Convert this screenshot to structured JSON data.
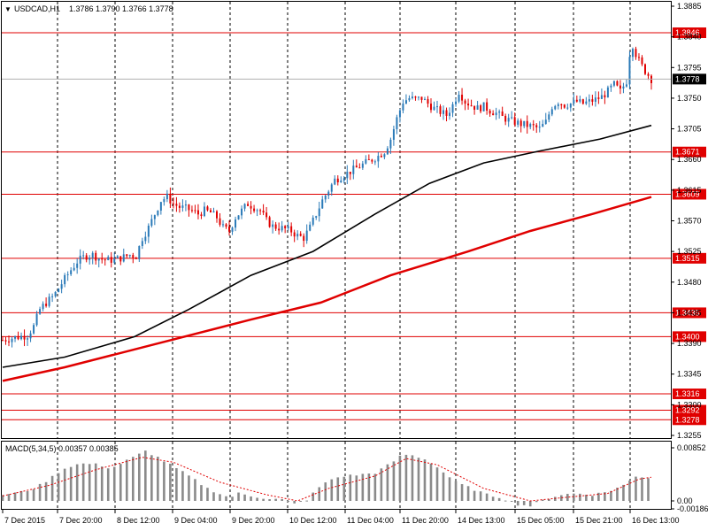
{
  "header": {
    "symbol": "USDCAD,H1",
    "ohlc": "1.3786 1.3790 1.3766 1.3778"
  },
  "macd_label": "MACD(5,34,5) 0.00357 0.00385",
  "colors": {
    "background": "#ffffff",
    "bull": "#2a7ab8",
    "bear": "#e00000",
    "ma_fast": "#000000",
    "ma_slow": "#e00000",
    "level_line": "#e00000",
    "grid": "#000000",
    "histogram": "#8a8a8a",
    "signal": "#e00000"
  },
  "chart_data": [
    {
      "type": "candlestick",
      "symbol": "USDCAD",
      "timeframe": "H1",
      "ylim": [
        1.3255,
        1.3885
      ],
      "y_ticks": [
        "1.3885",
        "1.3840",
        "1.3795",
        "1.3750",
        "1.3705",
        "1.3660",
        "1.3615",
        "1.3570",
        "1.3525",
        "1.3480",
        "1.3435",
        "1.3390",
        "1.3345",
        "1.3300",
        "1.3255"
      ],
      "x_ticks": [
        "7 Dec 2015",
        "7 Dec 20:00",
        "8 Dec 12:00",
        "9 Dec 04:00",
        "9 Dec 20:00",
        "10 Dec 12:00",
        "11 Dec 04:00",
        "11 Dec 20:00",
        "14 Dec 13:00",
        "15 Dec 05:00",
        "15 Dec 21:00",
        "16 Dec 13:00"
      ],
      "grid": "vertical dashed",
      "current_price": "1.3778",
      "levels": [
        "1.3846",
        "1.3671",
        "1.3609",
        "1.3515",
        "1.3435",
        "1.3400",
        "1.3316",
        "1.3292",
        "1.3278"
      ],
      "close_path": [
        [
          0,
          1.3395
        ],
        [
          6,
          1.3398
        ],
        [
          11,
          1.34
        ],
        [
          16,
          1.3402
        ],
        [
          20,
          1.3415
        ],
        [
          24,
          1.344
        ],
        [
          28,
          1.345
        ],
        [
          33,
          1.346
        ],
        [
          38,
          1.3478
        ],
        [
          43,
          1.3495
        ],
        [
          48,
          1.351
        ],
        [
          53,
          1.3518
        ],
        [
          58,
          1.352
        ],
        [
          62,
          1.3515
        ],
        [
          67,
          1.3512
        ],
        [
          72,
          1.3513
        ],
        [
          77,
          1.3516
        ],
        [
          82,
          1.352
        ],
        [
          86,
          1.3518
        ],
        [
          90,
          1.3545
        ],
        [
          94,
          1.356
        ],
        [
          98,
          1.358
        ],
        [
          102,
          1.36
        ],
        [
          106,
          1.3605
        ],
        [
          110,
          1.3595
        ],
        [
          114,
          1.359
        ],
        [
          118,
          1.3588
        ],
        [
          122,
          1.3585
        ],
        [
          126,
          1.358
        ],
        [
          130,
          1.3585
        ],
        [
          134,
          1.3582
        ],
        [
          138,
          1.3575
        ],
        [
          142,
          1.356
        ],
        [
          146,
          1.3555
        ],
        [
          150,
          1.3575
        ],
        [
          154,
          1.3585
        ],
        [
          158,
          1.3595
        ],
        [
          162,
          1.359
        ],
        [
          166,
          1.3585
        ],
        [
          170,
          1.357
        ],
        [
          174,
          1.3562
        ],
        [
          178,
          1.356
        ],
        [
          182,
          1.3558
        ],
        [
          186,
          1.3555
        ],
        [
          190,
          1.3548
        ],
        [
          194,
          1.3545
        ],
        [
          198,
          1.356
        ],
        [
          202,
          1.358
        ],
        [
          206,
          1.36
        ],
        [
          210,
          1.3615
        ],
        [
          214,
          1.363
        ],
        [
          218,
          1.3635
        ],
        [
          222,
          1.364
        ],
        [
          226,
          1.3645
        ],
        [
          230,
          1.365
        ],
        [
          234,
          1.3655
        ],
        [
          238,
          1.366
        ],
        [
          242,
          1.3665
        ],
        [
          246,
          1.3672
        ],
        [
          250,
          1.369
        ],
        [
          254,
          1.372
        ],
        [
          258,
          1.3745
        ],
        [
          262,
          1.375
        ],
        [
          266,
          1.3748
        ],
        [
          270,
          1.375
        ],
        [
          274,
          1.3742
        ],
        [
          278,
          1.3735
        ],
        [
          282,
          1.373
        ],
        [
          286,
          1.3725
        ],
        [
          290,
          1.374
        ],
        [
          294,
          1.376
        ],
        [
          298,
          1.3745
        ],
        [
          302,
          1.374
        ],
        [
          306,
          1.3735
        ],
        [
          310,
          1.3738
        ],
        [
          314,
          1.3732
        ],
        [
          318,
          1.3728
        ],
        [
          322,
          1.3722
        ],
        [
          326,
          1.3718
        ],
        [
          330,
          1.3715
        ],
        [
          334,
          1.3712
        ],
        [
          338,
          1.371
        ],
        [
          342,
          1.3708
        ],
        [
          346,
          1.3705
        ],
        [
          350,
          1.3715
        ],
        [
          354,
          1.3738
        ],
        [
          358,
          1.3745
        ],
        [
          362,
          1.374
        ],
        [
          366,
          1.3742
        ],
        [
          370,
          1.3745
        ],
        [
          374,
          1.3742
        ],
        [
          378,
          1.3745
        ],
        [
          382,
          1.3748
        ],
        [
          386,
          1.3752
        ],
        [
          390,
          1.376
        ],
        [
          394,
          1.377
        ],
        [
          398,
          1.376
        ],
        [
          402,
          1.3775
        ],
        [
          405,
          1.3835
        ],
        [
          408,
          1.3815
        ],
        [
          411,
          1.38
        ],
        [
          414,
          1.379
        ],
        [
          418,
          1.3778
        ]
      ],
      "ma_fast": [
        [
          0,
          1.3355
        ],
        [
          40,
          1.337
        ],
        [
          85,
          1.34
        ],
        [
          120,
          1.344
        ],
        [
          160,
          1.349
        ],
        [
          200,
          1.3525
        ],
        [
          240,
          1.358
        ],
        [
          275,
          1.3625
        ],
        [
          310,
          1.3655
        ],
        [
          345,
          1.3672
        ],
        [
          385,
          1.369
        ],
        [
          418,
          1.371
        ]
      ],
      "ma_slow": [
        [
          0,
          1.3335
        ],
        [
          40,
          1.3355
        ],
        [
          100,
          1.339
        ],
        [
          160,
          1.3425
        ],
        [
          205,
          1.345
        ],
        [
          250,
          1.349
        ],
        [
          300,
          1.3525
        ],
        [
          340,
          1.3555
        ],
        [
          380,
          1.358
        ],
        [
          418,
          1.3605
        ]
      ],
      "macd_panel": {
        "indicator": "MACD(5,34,5)",
        "y_ticks": [
          "0.00852",
          "0.00",
          "-0.00186"
        ],
        "histogram": [
          [
            0,
            0.001
          ],
          [
            14,
            0.0015
          ],
          [
            22,
            0.0022
          ],
          [
            30,
            0.0035
          ],
          [
            38,
            0.005
          ],
          [
            46,
            0.0058
          ],
          [
            54,
            0.006
          ],
          [
            62,
            0.0058
          ],
          [
            70,
            0.0052
          ],
          [
            80,
            0.0065
          ],
          [
            86,
            0.0072
          ],
          [
            92,
            0.008
          ],
          [
            100,
            0.007
          ],
          [
            110,
            0.0055
          ],
          [
            120,
            0.004
          ],
          [
            132,
            0.002
          ],
          [
            146,
            0.0005
          ],
          [
            152,
            0.0012
          ],
          [
            160,
            0.0008
          ],
          [
            170,
            0.0004
          ],
          [
            180,
            0.0002
          ],
          [
            188,
            -0.0005
          ],
          [
            196,
            0.0002
          ],
          [
            204,
            0.0022
          ],
          [
            212,
            0.0035
          ],
          [
            220,
            0.004
          ],
          [
            230,
            0.0042
          ],
          [
            240,
            0.0045
          ],
          [
            250,
            0.006
          ],
          [
            258,
            0.0075
          ],
          [
            266,
            0.0072
          ],
          [
            274,
            0.0065
          ],
          [
            282,
            0.005
          ],
          [
            292,
            0.003
          ],
          [
            302,
            0.002
          ],
          [
            312,
            0.001
          ],
          [
            322,
            0.0005
          ],
          [
            330,
            -0.0005
          ],
          [
            340,
            -0.0008
          ],
          [
            350,
            0.0003
          ],
          [
            360,
            0.001
          ],
          [
            370,
            0.0012
          ],
          [
            380,
            0.001
          ],
          [
            390,
            0.0015
          ],
          [
            400,
            0.0025
          ],
          [
            408,
            0.004
          ],
          [
            414,
            0.0038
          ],
          [
            418,
            0.0036
          ]
        ],
        "signal": [
          [
            0,
            0.0008
          ],
          [
            30,
            0.0025
          ],
          [
            60,
            0.005
          ],
          [
            90,
            0.007
          ],
          [
            110,
            0.0062
          ],
          [
            140,
            0.003
          ],
          [
            170,
            0.001
          ],
          [
            190,
            0.0
          ],
          [
            210,
            0.002
          ],
          [
            240,
            0.004
          ],
          [
            260,
            0.0068
          ],
          [
            280,
            0.0058
          ],
          [
            310,
            0.002
          ],
          [
            340,
            0.0
          ],
          [
            360,
            0.0005
          ],
          [
            390,
            0.0012
          ],
          [
            410,
            0.0035
          ],
          [
            418,
            0.0038
          ]
        ]
      }
    }
  ]
}
